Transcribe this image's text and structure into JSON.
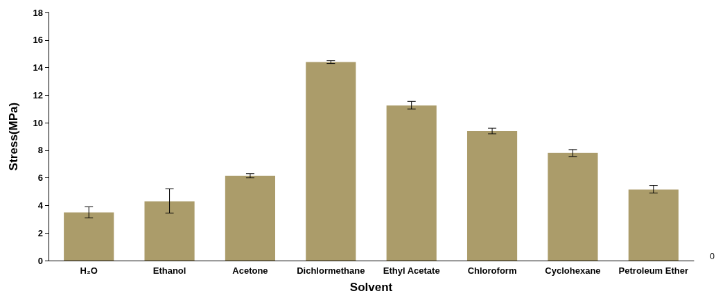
{
  "chart_data": {
    "type": "bar",
    "xlabel": "Solvent",
    "ylabel": "Stress(MPa)",
    "categories": [
      "H₂O",
      "Ethanol",
      "Acetone",
      "Dichlormethane",
      "Ethyl Acetate",
      "Chloroform",
      "Cyclohexane",
      "Petroleum Ether"
    ],
    "values": [
      3.5,
      4.3,
      6.15,
      14.4,
      11.25,
      9.4,
      7.8,
      5.15
    ],
    "errors": [
      [
        3.1,
        3.9
      ],
      [
        3.45,
        5.2
      ],
      [
        6.0,
        6.3
      ],
      [
        14.3,
        14.5
      ],
      [
        11.0,
        11.55
      ],
      [
        9.2,
        9.6
      ],
      [
        7.55,
        8.05
      ],
      [
        4.9,
        5.45
      ]
    ],
    "color": "#ab9c6a",
    "ylim": [
      0,
      18
    ],
    "yticks": [
      0,
      2,
      4,
      6,
      8,
      10,
      12,
      14,
      16,
      18
    ],
    "grid": false,
    "annotations": [
      "0"
    ]
  }
}
